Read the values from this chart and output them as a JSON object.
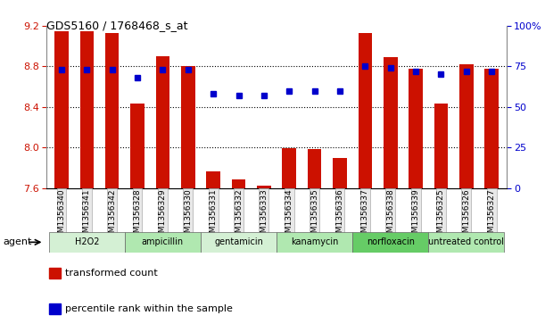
{
  "title": "GDS5160 / 1768468_s_at",
  "samples": [
    "GSM1356340",
    "GSM1356341",
    "GSM1356342",
    "GSM1356328",
    "GSM1356329",
    "GSM1356330",
    "GSM1356331",
    "GSM1356332",
    "GSM1356333",
    "GSM1356334",
    "GSM1356335",
    "GSM1356336",
    "GSM1356337",
    "GSM1356338",
    "GSM1356339",
    "GSM1356325",
    "GSM1356326",
    "GSM1356327"
  ],
  "bar_values": [
    9.15,
    9.15,
    9.13,
    8.43,
    8.9,
    8.8,
    7.76,
    7.68,
    7.62,
    7.99,
    7.98,
    7.9,
    9.13,
    8.89,
    8.78,
    8.43,
    8.82,
    8.78
  ],
  "percentile_values": [
    73,
    73,
    73,
    68,
    73,
    73,
    58,
    57,
    57,
    60,
    60,
    60,
    75,
    74,
    72,
    70,
    72,
    72
  ],
  "groups": [
    {
      "label": "H2O2",
      "start": 0,
      "end": 3,
      "color": "#d4f0d4"
    },
    {
      "label": "ampicillin",
      "start": 3,
      "end": 6,
      "color": "#b0e8b0"
    },
    {
      "label": "gentamicin",
      "start": 6,
      "end": 9,
      "color": "#d4f0d4"
    },
    {
      "label": "kanamycin",
      "start": 9,
      "end": 12,
      "color": "#b0e8b0"
    },
    {
      "label": "norfloxacin",
      "start": 12,
      "end": 15,
      "color": "#66cc66"
    },
    {
      "label": "untreated control",
      "start": 15,
      "end": 18,
      "color": "#b0e8b0"
    }
  ],
  "ylim_left": [
    7.6,
    9.2
  ],
  "ylim_right": [
    0,
    100
  ],
  "yticks_left": [
    7.6,
    8.0,
    8.4,
    8.8,
    9.2
  ],
  "yticks_right": [
    0,
    25,
    50,
    75,
    100
  ],
  "ytick_labels_right": [
    "0",
    "25",
    "50",
    "75",
    "100%"
  ],
  "bar_color": "#cc1100",
  "dot_color": "#0000cc",
  "grid_color": "#000000",
  "tick_label_color_left": "#cc1100",
  "tick_label_color_right": "#0000cc",
  "legend_tc": "transformed count",
  "legend_pr": "percentile rank within the sample",
  "agent_label": "agent",
  "bar_bottom": 7.6,
  "grid_lines": [
    8.0,
    8.4,
    8.8
  ]
}
